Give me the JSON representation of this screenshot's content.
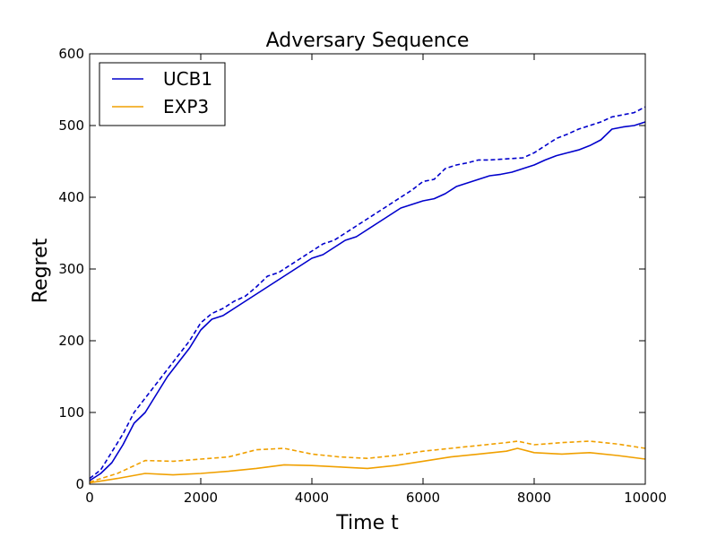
{
  "chart_data": {
    "type": "line",
    "title": "Adversary Sequence",
    "xlabel": "Time t",
    "ylabel": "Regret",
    "xlim": [
      0,
      10000
    ],
    "ylim": [
      0,
      600
    ],
    "xticks": [
      0,
      2000,
      4000,
      6000,
      8000,
      10000
    ],
    "yticks": [
      0,
      100,
      200,
      300,
      400,
      500,
      600
    ],
    "xtick_labels": [
      "0",
      "2000",
      "4000",
      "6000",
      "8000",
      "10000"
    ],
    "ytick_labels": [
      "0",
      "100",
      "200",
      "300",
      "400",
      "500",
      "600"
    ],
    "grid": false,
    "legend": {
      "position": "top-left",
      "entries": [
        {
          "name": "UCB1",
          "color": "#0000cc"
        },
        {
          "name": "EXP3",
          "color": "#f0a000"
        }
      ]
    },
    "series": [
      {
        "name": "UCB1",
        "color": "#0000cc",
        "style": "solid",
        "x": [
          0,
          200,
          400,
          600,
          800,
          1000,
          1200,
          1400,
          1600,
          1800,
          2000,
          2200,
          2400,
          2600,
          2800,
          3000,
          3200,
          3400,
          3600,
          3800,
          4000,
          4200,
          4400,
          4600,
          4800,
          5000,
          5200,
          5400,
          5600,
          5800,
          6000,
          6200,
          6400,
          6600,
          6800,
          7000,
          7200,
          7400,
          7600,
          7800,
          8000,
          8200,
          8400,
          8600,
          8800,
          9000,
          9200,
          9400,
          9600,
          9800,
          10000
        ],
        "y": [
          5,
          15,
          30,
          55,
          85,
          100,
          125,
          150,
          170,
          190,
          215,
          230,
          235,
          245,
          255,
          265,
          275,
          285,
          295,
          305,
          315,
          320,
          330,
          340,
          345,
          355,
          365,
          375,
          385,
          390,
          395,
          398,
          405,
          415,
          420,
          425,
          430,
          432,
          435,
          440,
          445,
          452,
          458,
          462,
          466,
          472,
          480,
          495,
          498,
          500,
          505
        ]
      },
      {
        "name": "UCB1",
        "color": "#0000cc",
        "style": "dashed",
        "x": [
          0,
          200,
          400,
          600,
          800,
          1000,
          1200,
          1400,
          1600,
          1800,
          2000,
          2200,
          2400,
          2600,
          2800,
          3000,
          3200,
          3400,
          3600,
          3800,
          4000,
          4200,
          4400,
          4600,
          4800,
          5000,
          5200,
          5400,
          5600,
          5800,
          6000,
          6200,
          6400,
          6600,
          6800,
          7000,
          7200,
          7400,
          7600,
          7800,
          8000,
          8200,
          8400,
          8600,
          8800,
          9000,
          9200,
          9400,
          9600,
          9800,
          10000
        ],
        "y": [
          8,
          20,
          45,
          70,
          100,
          120,
          140,
          160,
          180,
          200,
          225,
          238,
          245,
          255,
          262,
          275,
          290,
          295,
          305,
          315,
          325,
          335,
          340,
          350,
          360,
          370,
          380,
          390,
          400,
          410,
          422,
          425,
          440,
          445,
          448,
          452,
          452,
          453,
          454,
          455,
          462,
          472,
          482,
          488,
          495,
          500,
          505,
          512,
          515,
          518,
          526
        ]
      },
      {
        "name": "EXP3",
        "color": "#f0a000",
        "style": "solid",
        "x": [
          0,
          500,
          1000,
          1500,
          2000,
          2500,
          3000,
          3500,
          4000,
          4500,
          5000,
          5500,
          6000,
          6500,
          7000,
          7500,
          7700,
          8000,
          8500,
          9000,
          9500,
          10000
        ],
        "y": [
          2,
          8,
          15,
          13,
          15,
          18,
          22,
          27,
          26,
          24,
          22,
          26,
          32,
          38,
          42,
          46,
          50,
          44,
          42,
          44,
          40,
          35
        ]
      },
      {
        "name": "EXP3",
        "color": "#f0a000",
        "style": "dashed",
        "x": [
          0,
          500,
          1000,
          1500,
          2000,
          2500,
          3000,
          3500,
          4000,
          4500,
          5000,
          5500,
          6000,
          6500,
          7000,
          7500,
          7700,
          8000,
          8500,
          9000,
          9500,
          10000
        ],
        "y": [
          3,
          15,
          33,
          32,
          35,
          38,
          48,
          50,
          42,
          38,
          36,
          40,
          46,
          50,
          54,
          58,
          60,
          55,
          58,
          60,
          56,
          50
        ]
      }
    ]
  }
}
